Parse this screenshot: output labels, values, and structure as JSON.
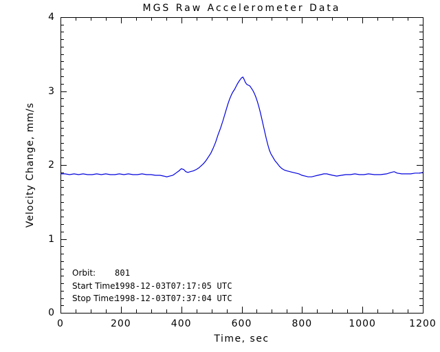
{
  "chart_data": {
    "type": "line",
    "title": "MGS Raw Accelerometer Data",
    "xlabel": "Time, sec",
    "ylabel": "Velocity Change, mm/s",
    "xlim": [
      0,
      1200
    ],
    "ylim": [
      0,
      4
    ],
    "xticks": [
      0,
      200,
      400,
      600,
      800,
      1000,
      1200
    ],
    "yticks": [
      0,
      1,
      2,
      3,
      4
    ],
    "x_minor_interval": 50,
    "y_minor_interval": 0.1,
    "grid": false,
    "legend_position": "none",
    "line_color": "#0000DD",
    "axis_color": "#000000",
    "background_color": "#FFFFFF",
    "series": [
      {
        "name": "velocity-change",
        "points": [
          [
            0,
            1.88
          ],
          [
            15,
            1.88
          ],
          [
            30,
            1.87
          ],
          [
            45,
            1.88
          ],
          [
            60,
            1.87
          ],
          [
            75,
            1.88
          ],
          [
            90,
            1.87
          ],
          [
            105,
            1.87
          ],
          [
            120,
            1.88
          ],
          [
            135,
            1.87
          ],
          [
            150,
            1.88
          ],
          [
            165,
            1.87
          ],
          [
            180,
            1.87
          ],
          [
            195,
            1.88
          ],
          [
            210,
            1.87
          ],
          [
            225,
            1.88
          ],
          [
            240,
            1.87
          ],
          [
            255,
            1.87
          ],
          [
            270,
            1.88
          ],
          [
            285,
            1.87
          ],
          [
            300,
            1.87
          ],
          [
            315,
            1.86
          ],
          [
            330,
            1.86
          ],
          [
            342,
            1.85
          ],
          [
            352,
            1.84
          ],
          [
            362,
            1.85
          ],
          [
            372,
            1.86
          ],
          [
            382,
            1.89
          ],
          [
            392,
            1.92
          ],
          [
            400,
            1.95
          ],
          [
            408,
            1.94
          ],
          [
            415,
            1.91
          ],
          [
            422,
            1.9
          ],
          [
            430,
            1.91
          ],
          [
            440,
            1.92
          ],
          [
            450,
            1.94
          ],
          [
            458,
            1.96
          ],
          [
            466,
            1.99
          ],
          [
            474,
            2.02
          ],
          [
            482,
            2.06
          ],
          [
            490,
            2.11
          ],
          [
            498,
            2.16
          ],
          [
            506,
            2.23
          ],
          [
            514,
            2.31
          ],
          [
            522,
            2.41
          ],
          [
            530,
            2.5
          ],
          [
            538,
            2.6
          ],
          [
            546,
            2.71
          ],
          [
            554,
            2.82
          ],
          [
            560,
            2.89
          ],
          [
            566,
            2.95
          ],
          [
            571,
            2.99
          ],
          [
            576,
            3.02
          ],
          [
            581,
            3.06
          ],
          [
            586,
            3.1
          ],
          [
            591,
            3.13
          ],
          [
            596,
            3.16
          ],
          [
            600,
            3.18
          ],
          [
            604,
            3.19
          ],
          [
            608,
            3.16
          ],
          [
            612,
            3.12
          ],
          [
            617,
            3.09
          ],
          [
            622,
            3.08
          ],
          [
            627,
            3.07
          ],
          [
            632,
            3.04
          ],
          [
            637,
            3.01
          ],
          [
            642,
            2.97
          ],
          [
            647,
            2.92
          ],
          [
            652,
            2.86
          ],
          [
            657,
            2.79
          ],
          [
            662,
            2.71
          ],
          [
            667,
            2.62
          ],
          [
            672,
            2.53
          ],
          [
            677,
            2.44
          ],
          [
            682,
            2.35
          ],
          [
            687,
            2.27
          ],
          [
            692,
            2.2
          ],
          [
            697,
            2.15
          ],
          [
            703,
            2.11
          ],
          [
            710,
            2.06
          ],
          [
            718,
            2.02
          ],
          [
            726,
            1.98
          ],
          [
            734,
            1.95
          ],
          [
            742,
            1.93
          ],
          [
            750,
            1.92
          ],
          [
            760,
            1.91
          ],
          [
            770,
            1.9
          ],
          [
            780,
            1.89
          ],
          [
            790,
            1.88
          ],
          [
            800,
            1.86
          ],
          [
            810,
            1.85
          ],
          [
            820,
            1.84
          ],
          [
            832,
            1.84
          ],
          [
            842,
            1.85
          ],
          [
            852,
            1.86
          ],
          [
            862,
            1.87
          ],
          [
            872,
            1.88
          ],
          [
            882,
            1.88
          ],
          [
            892,
            1.87
          ],
          [
            902,
            1.86
          ],
          [
            915,
            1.85
          ],
          [
            930,
            1.86
          ],
          [
            945,
            1.87
          ],
          [
            960,
            1.87
          ],
          [
            975,
            1.88
          ],
          [
            990,
            1.87
          ],
          [
            1005,
            1.87
          ],
          [
            1020,
            1.88
          ],
          [
            1040,
            1.87
          ],
          [
            1060,
            1.87
          ],
          [
            1080,
            1.88
          ],
          [
            1095,
            1.9
          ],
          [
            1105,
            1.91
          ],
          [
            1115,
            1.89
          ],
          [
            1130,
            1.88
          ],
          [
            1145,
            1.88
          ],
          [
            1160,
            1.88
          ],
          [
            1175,
            1.89
          ],
          [
            1190,
            1.89
          ],
          [
            1200,
            1.9
          ]
        ]
      }
    ],
    "annotations": {
      "rows": [
        {
          "label": "Orbit:",
          "value": "801"
        },
        {
          "label": "Start Time:",
          "value": "1998-12-03T07:17:05 UTC"
        },
        {
          "label": "Stop Time:",
          "value": "1998-12-03T07:37:04 UTC"
        }
      ]
    }
  }
}
